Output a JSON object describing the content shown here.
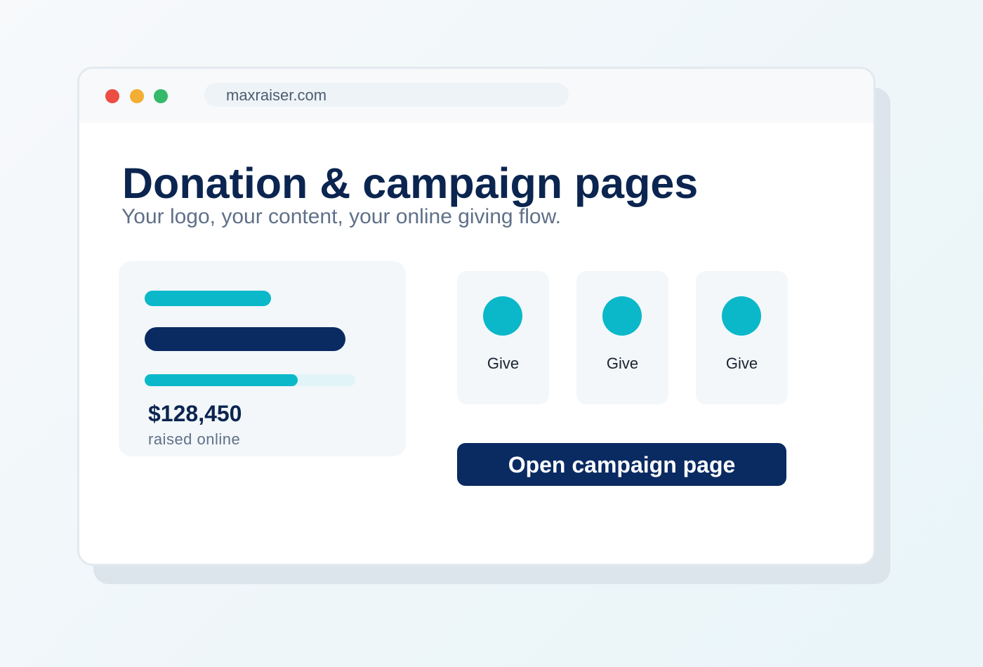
{
  "browser": {
    "url": "maxraiser.com"
  },
  "hero": {
    "title": "Donation & campaign pages",
    "subtitle": "Your logo, your content, your online giving flow."
  },
  "stats_card": {
    "amount": "$128,450",
    "caption": "raised online"
  },
  "give_options": [
    "Give",
    "Give",
    "Give"
  ],
  "cta": {
    "label": "Open campaign page"
  }
}
